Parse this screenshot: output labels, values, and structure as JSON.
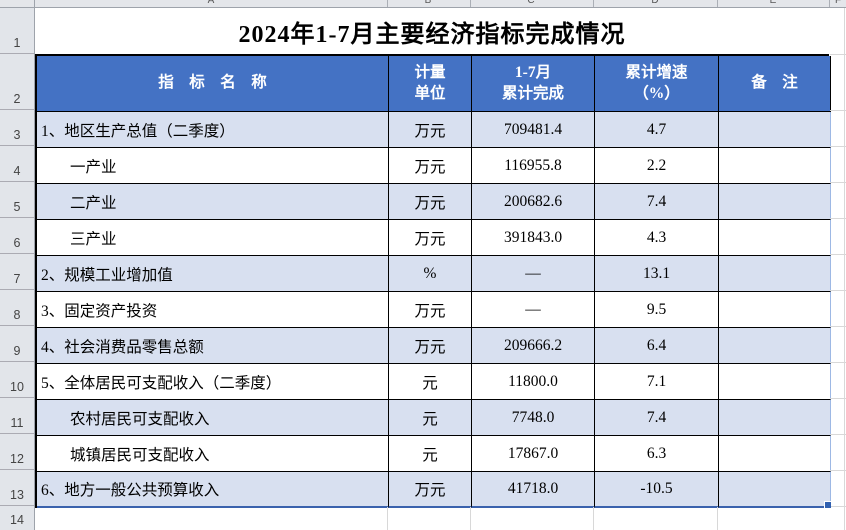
{
  "title": "2024年1-7月主要经济指标完成情况",
  "spreadsheet": {
    "column_letters": [
      "A",
      "B",
      "C",
      "D",
      "E",
      "F"
    ],
    "row_numbers": [
      "1",
      "2",
      "3",
      "4",
      "5",
      "6",
      "7",
      "8",
      "9",
      "10",
      "11",
      "12",
      "13",
      "14"
    ]
  },
  "table": {
    "headers": {
      "indicator": "指　标　名　称",
      "unit": "计量\n单位",
      "completed": "1-7月\n累计完成",
      "growth": "累计增速\n（%）",
      "remark": "备　注"
    },
    "rows": [
      {
        "indicator": "1、地区生产总值（二季度）",
        "indent": 0,
        "unit": "万元",
        "completed": "709481.4",
        "growth": "4.7",
        "remark": "",
        "band": true
      },
      {
        "indicator": "一产业",
        "indent": 1,
        "unit": "万元",
        "completed": "116955.8",
        "growth": "2.2",
        "remark": "",
        "band": false
      },
      {
        "indicator": "二产业",
        "indent": 1,
        "unit": "万元",
        "completed": "200682.6",
        "growth": "7.4",
        "remark": "",
        "band": true
      },
      {
        "indicator": "三产业",
        "indent": 1,
        "unit": "万元",
        "completed": "391843.0",
        "growth": "4.3",
        "remark": "",
        "band": false
      },
      {
        "indicator": "2、规模工业增加值",
        "indent": 0,
        "unit": "%",
        "completed": "—",
        "growth": "13.1",
        "remark": "",
        "band": true
      },
      {
        "indicator": "3、固定资产投资",
        "indent": 0,
        "unit": "万元",
        "completed": "—",
        "growth": "9.5",
        "remark": "",
        "band": false
      },
      {
        "indicator": "4、社会消费品零售总额",
        "indent": 0,
        "unit": "万元",
        "completed": "209666.2",
        "growth": "6.4",
        "remark": "",
        "band": true
      },
      {
        "indicator": "5、全体居民可支配收入（二季度）",
        "indent": 0,
        "unit": "元",
        "completed": "11800.0",
        "growth": "7.1",
        "remark": "",
        "band": false
      },
      {
        "indicator": "农村居民可支配收入",
        "indent": 1,
        "unit": "元",
        "completed": "7748.0",
        "growth": "7.4",
        "remark": "",
        "band": true
      },
      {
        "indicator": "城镇居民可支配收入",
        "indent": 1,
        "unit": "元",
        "completed": "17867.0",
        "growth": "6.3",
        "remark": "",
        "band": false
      },
      {
        "indicator": "6、地方一般公共预算收入",
        "indent": 0,
        "unit": "万元",
        "completed": "41718.0",
        "growth": "-10.5",
        "remark": "",
        "band": true
      }
    ]
  },
  "colors": {
    "header_bg": "#4472C4",
    "band_bg": "#D8E0F0",
    "table_border": "#000000",
    "selection_accent": "#3A62AD",
    "chrome_bg": "#E4E6EA"
  }
}
